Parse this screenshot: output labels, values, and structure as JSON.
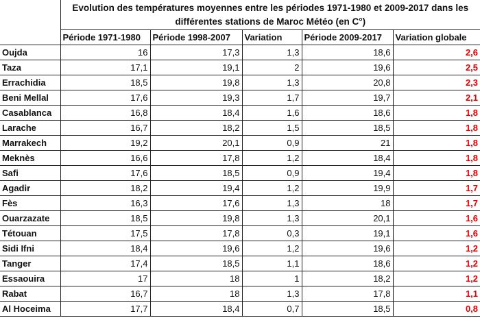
{
  "title": "Evolution des températures moyennes entre les périodes 1971-1980 et 2009-2017 dans les différentes stations de Maroc Météo (en C°)",
  "columns": [
    "Période 1971-1980",
    "Période 1998-2007",
    "Variation",
    "Période 2009-2017",
    "Variation globale"
  ],
  "highlight_color": "#e00000",
  "rows": [
    [
      "Oujda",
      "16",
      "17,3",
      "1,3",
      "18,6",
      "2,6"
    ],
    [
      "Taza",
      "17,1",
      "19,1",
      "2",
      "19,6",
      "2,5"
    ],
    [
      "Errachidia",
      "18,5",
      "19,8",
      "1,3",
      "20,8",
      "2,3"
    ],
    [
      "Beni Mellal",
      "17,6",
      "19,3",
      "1,7",
      "19,7",
      "2,1"
    ],
    [
      "Casablanca",
      "16,8",
      "18,4",
      "1,6",
      "18,6",
      "1,8"
    ],
    [
      "Larache",
      "16,7",
      "18,2",
      "1,5",
      "18,5",
      "1,8"
    ],
    [
      "Marrakech",
      "19,2",
      "20,1",
      "0,9",
      "21",
      "1,8"
    ],
    [
      "Meknès",
      "16,6",
      "17,8",
      "1,2",
      "18,4",
      "1,8"
    ],
    [
      "Safi",
      "17,6",
      "18,5",
      "0,9",
      "19,4",
      "1,8"
    ],
    [
      "Agadir",
      "18,2",
      "19,4",
      "1,2",
      "19,9",
      "1,7"
    ],
    [
      "Fès",
      "16,3",
      "17,6",
      "1,3",
      "18",
      "1,7"
    ],
    [
      "Ouarzazate",
      "18,5",
      "19,8",
      "1,3",
      "20,1",
      "1,6"
    ],
    [
      "Tétouan",
      "17,5",
      "17,8",
      "0,3",
      "19,1",
      "1,6"
    ],
    [
      "Sidi Ifni",
      "18,4",
      "19,6",
      "1,2",
      "19,6",
      "1,2"
    ],
    [
      "Tanger",
      "17,4",
      "18,5",
      "1,1",
      "18,6",
      "1,2"
    ],
    [
      "Essaouira",
      "17",
      "18",
      "1",
      "18,2",
      "1,2"
    ],
    [
      "Rabat",
      "16,7",
      "18",
      "1,3",
      "17,8",
      "1,1"
    ],
    [
      "Al Hoceima",
      "17,7",
      "18,4",
      "0,7",
      "18,5",
      "0,8"
    ]
  ]
}
